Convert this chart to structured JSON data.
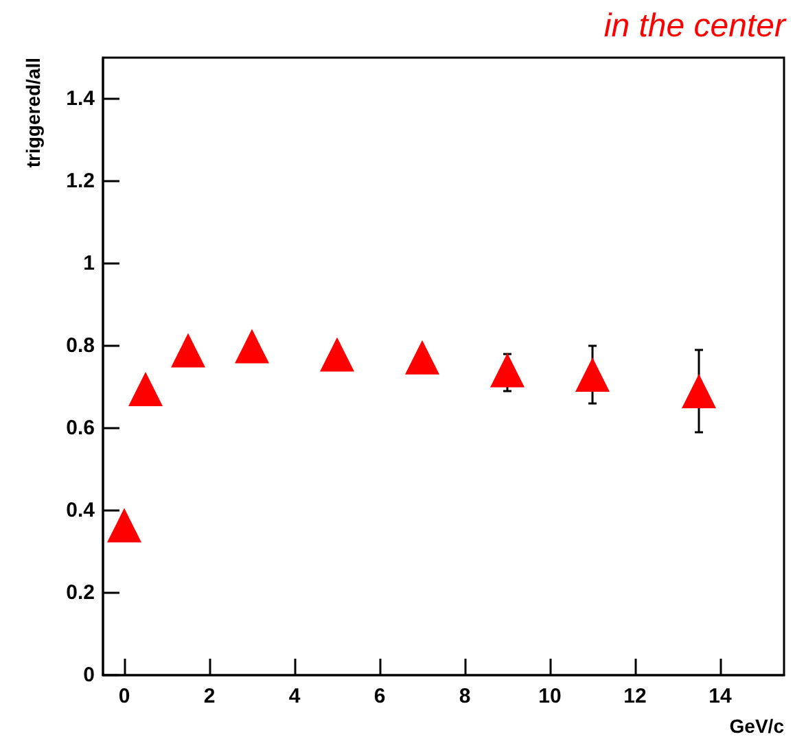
{
  "chart_data": {
    "type": "scatter",
    "title": "in the center",
    "xlabel": "GeV/c",
    "ylabel": "triggered/all",
    "x": [
      0,
      0.5,
      1.5,
      3,
      5,
      7,
      9,
      11,
      13.5
    ],
    "series": [
      {
        "color": "#ff0000",
        "values": [
          0.364,
          0.695,
          0.789,
          0.799,
          0.779,
          0.772,
          0.741,
          0.73,
          0.69
        ],
        "errors": [
          null,
          null,
          null,
          null,
          null,
          null,
          [
            0.69,
            0.78
          ],
          [
            0.66,
            0.8
          ],
          [
            0.59,
            0.79
          ]
        ]
      }
    ],
    "xlim": [
      -0.5,
      15.5
    ],
    "xticks": [
      0,
      2,
      4,
      6,
      8,
      10,
      12,
      14
    ],
    "ylim": [
      0,
      1.5
    ],
    "yticks": [
      0,
      0.2,
      0.4,
      0.6,
      0.8,
      1,
      1.2,
      1.4
    ],
    "marker": "triangle"
  }
}
